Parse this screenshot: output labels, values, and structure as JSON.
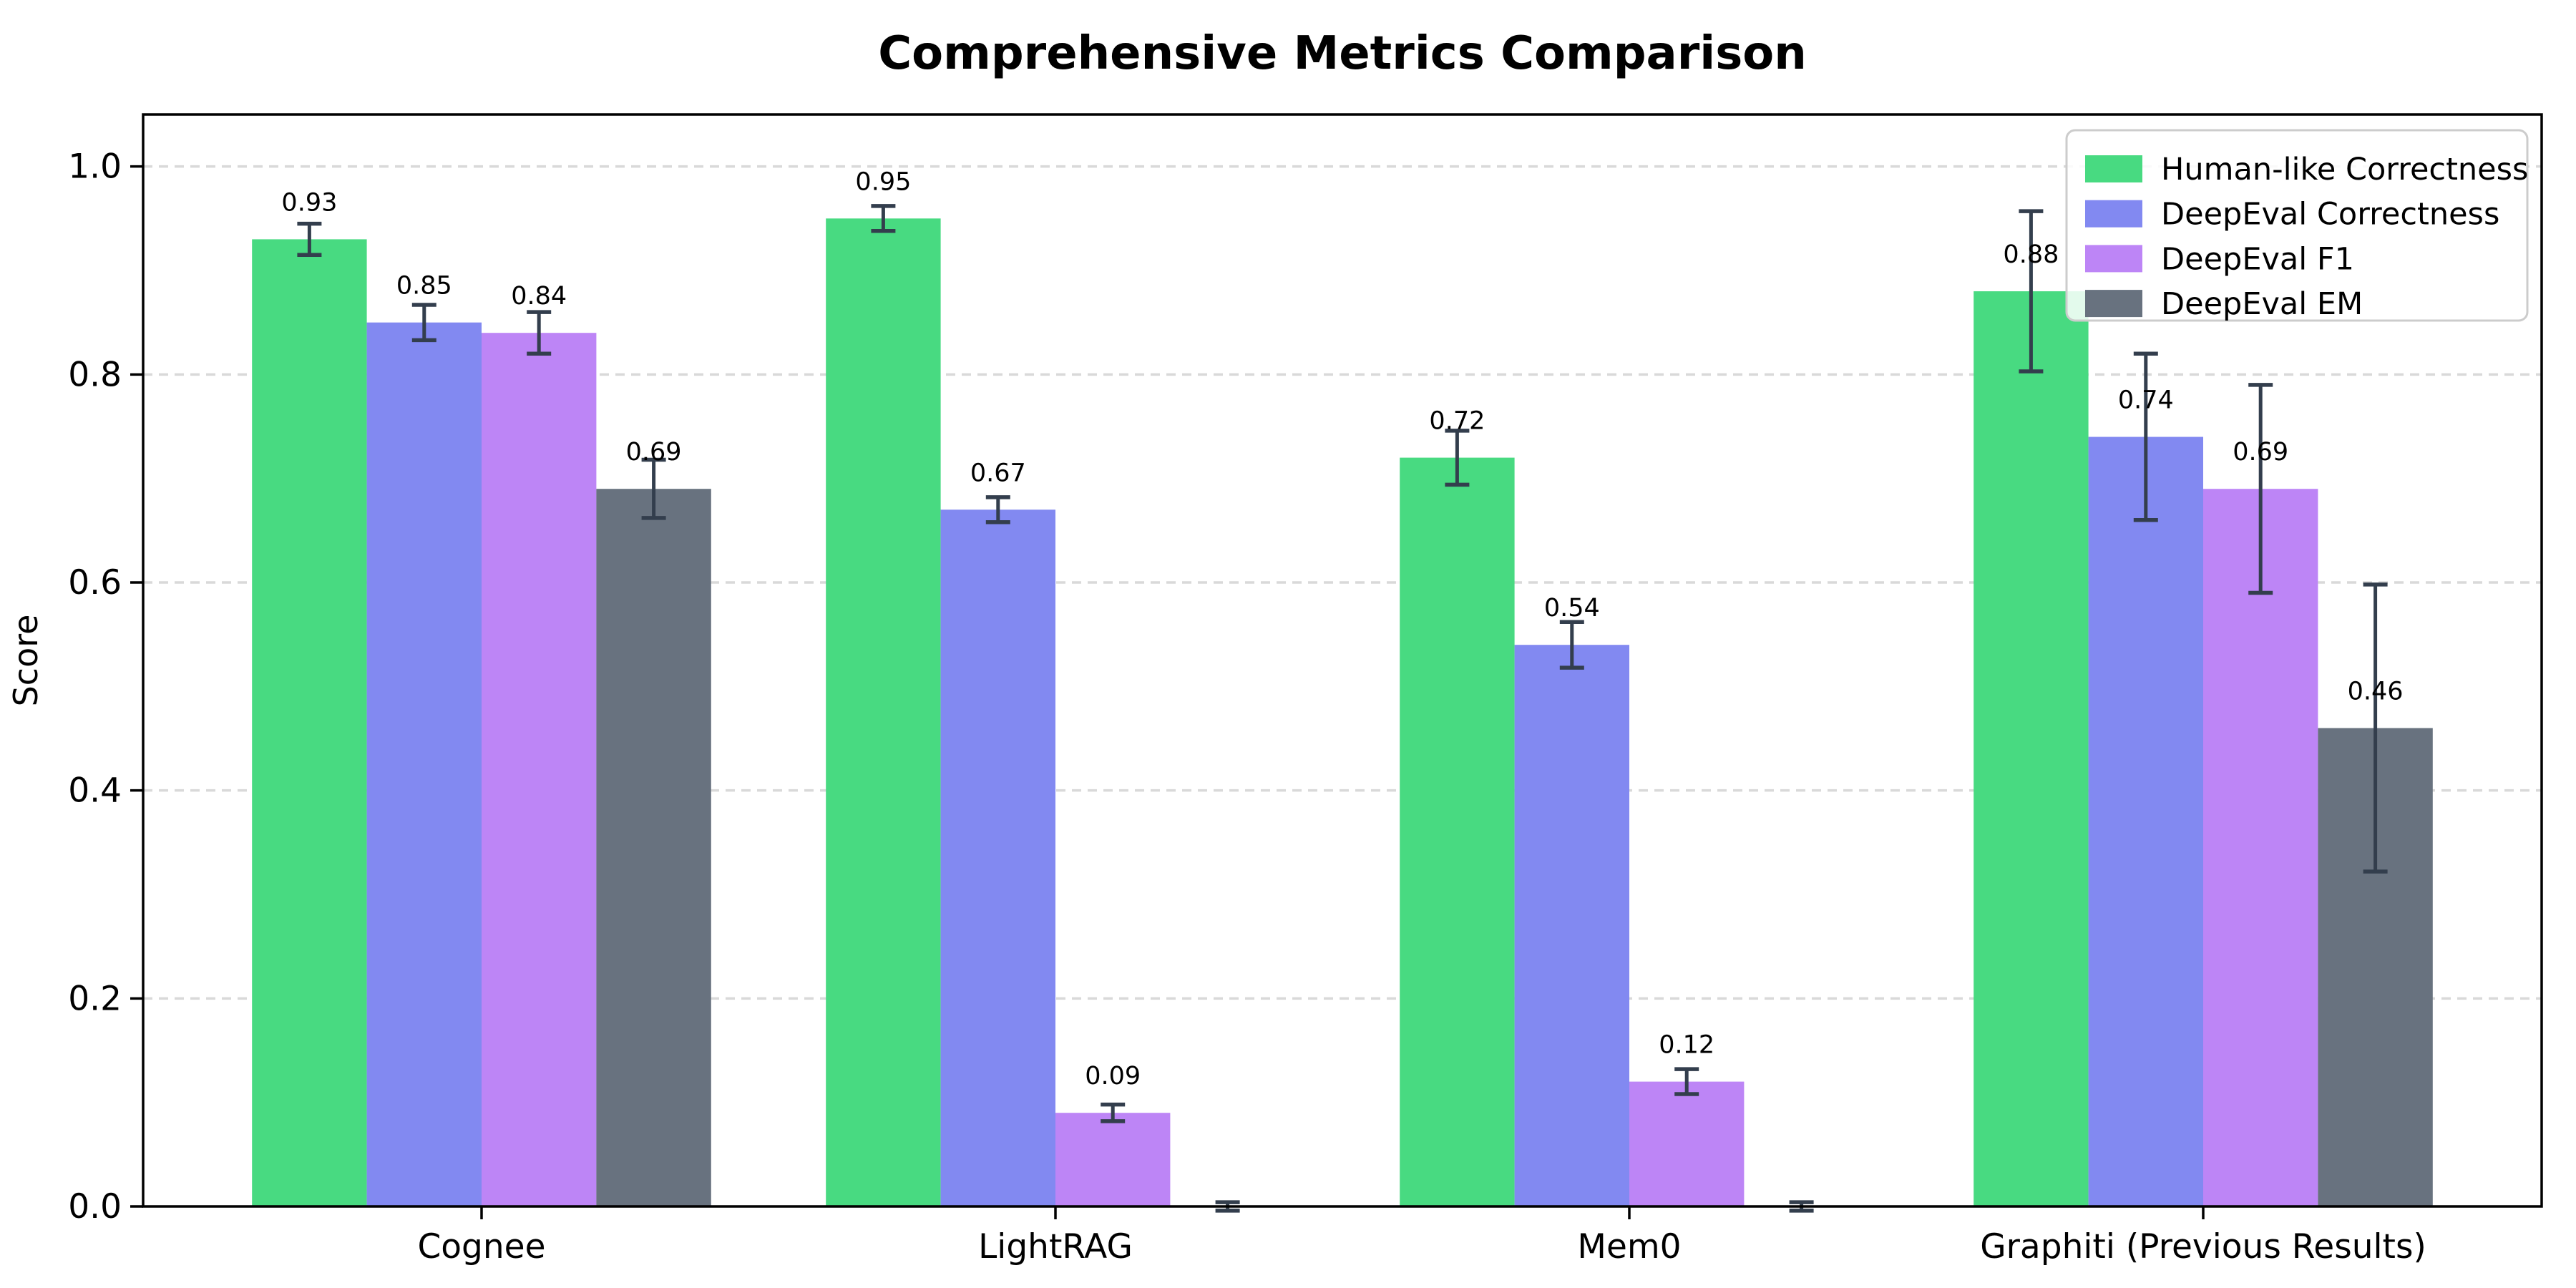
{
  "chart_data": {
    "type": "bar",
    "title": "Comprehensive Metrics Comparison",
    "xlabel": "",
    "ylabel": "Score",
    "categories": [
      "Cognee",
      "LightRAG",
      "Mem0",
      "Graphiti (Previous Results)"
    ],
    "series": [
      {
        "name": "Human-like Correctness",
        "color": "#48da81",
        "values": [
          0.93,
          0.95,
          0.72,
          0.88
        ],
        "errors": [
          0.015,
          0.012,
          0.026,
          0.077
        ]
      },
      {
        "name": "DeepEval Correctness",
        "color": "#8289f1",
        "values": [
          0.85,
          0.67,
          0.54,
          0.74
        ],
        "errors": [
          0.017,
          0.012,
          0.022,
          0.08
        ]
      },
      {
        "name": "DeepEval F1",
        "color": "#bd85f6",
        "values": [
          0.84,
          0.09,
          0.12,
          0.69
        ],
        "errors": [
          0.02,
          0.008,
          0.012,
          0.1
        ]
      },
      {
        "name": "DeepEval EM",
        "color": "#68727f",
        "values": [
          0.69,
          0.0,
          0.0,
          0.46
        ],
        "errors": [
          0.028,
          0.004,
          0.004,
          0.138
        ]
      }
    ],
    "bar_labels": [
      [
        "0.93",
        "0.95",
        "0.72",
        "0.88"
      ],
      [
        "0.85",
        "0.67",
        "0.54",
        "0.74"
      ],
      [
        "0.84",
        "0.09",
        "0.12",
        "0.69"
      ],
      [
        "0.69",
        "",
        "",
        "0.46"
      ]
    ],
    "yticks": [
      0.0,
      0.2,
      0.4,
      0.6,
      0.8,
      1.0
    ],
    "ytick_labels": [
      "0.0",
      "0.2",
      "0.4",
      "0.6",
      "0.8",
      "1.0"
    ],
    "ylim": [
      0,
      1.05
    ],
    "grid": {
      "axis": "y",
      "style": "dashed",
      "color": "#d9d9d9"
    },
    "legend_position": "upper right",
    "error_color": "#333e4d",
    "axis_color": "#000000",
    "background_color": "#ffffff"
  }
}
